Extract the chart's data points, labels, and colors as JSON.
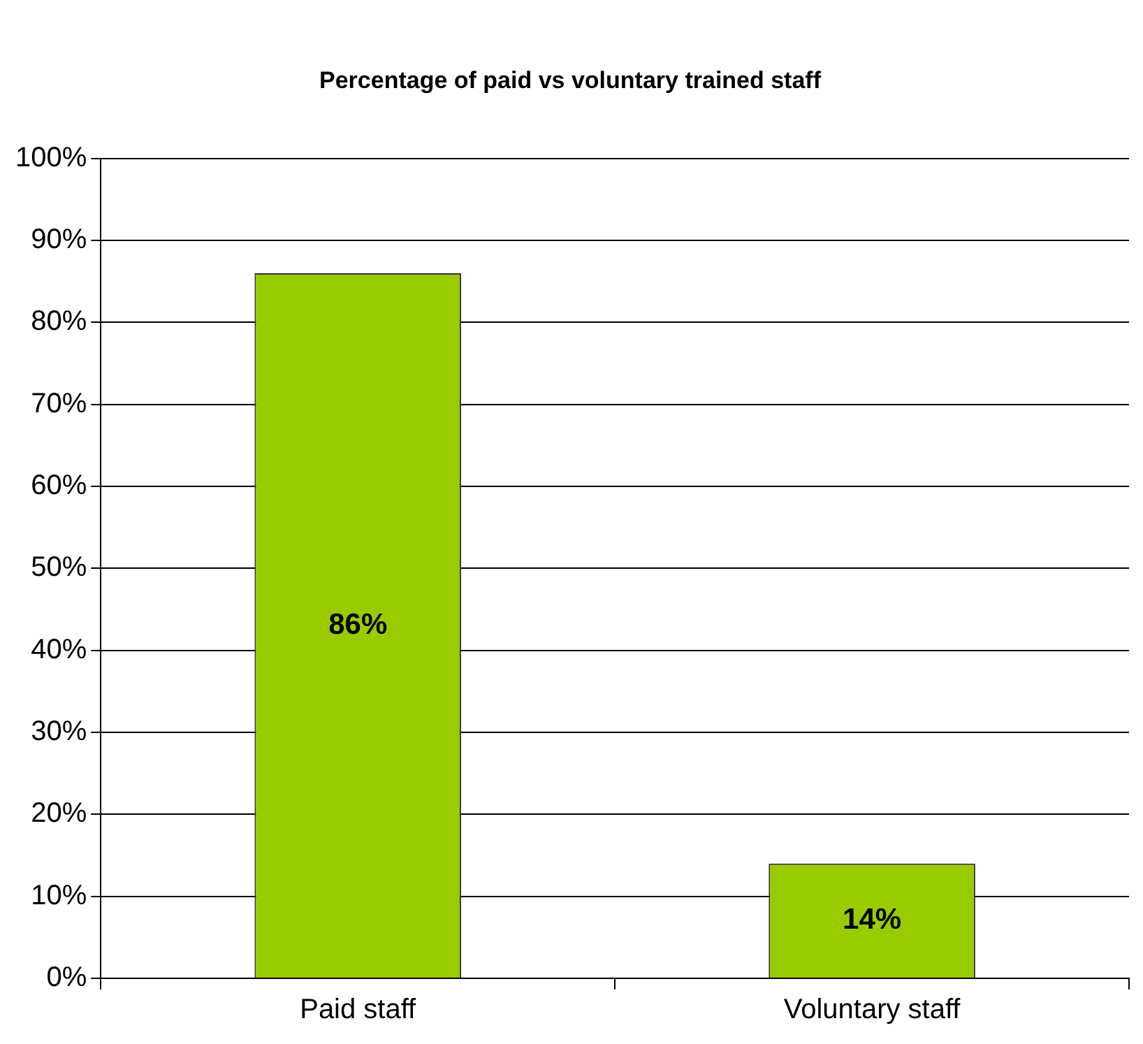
{
  "chart_data": {
    "type": "bar",
    "title": "Percentage of paid vs voluntary trained staff",
    "categories": [
      "Paid staff",
      "Voluntary staff"
    ],
    "values": [
      86,
      14
    ],
    "value_labels": [
      "86%",
      "14%"
    ],
    "color": "#99cc00",
    "ylim": [
      0,
      100
    ],
    "yticks": [
      {
        "value": 0,
        "label": "0%"
      },
      {
        "value": 10,
        "label": "10%"
      },
      {
        "value": 20,
        "label": "20%"
      },
      {
        "value": 30,
        "label": "30%"
      },
      {
        "value": 40,
        "label": "40%"
      },
      {
        "value": 50,
        "label": "50%"
      },
      {
        "value": 60,
        "label": "60%"
      },
      {
        "value": 70,
        "label": "70%"
      },
      {
        "value": 80,
        "label": "80%"
      },
      {
        "value": 90,
        "label": "90%"
      },
      {
        "value": 100,
        "label": "100%"
      }
    ],
    "grid": "y",
    "legend": false
  }
}
